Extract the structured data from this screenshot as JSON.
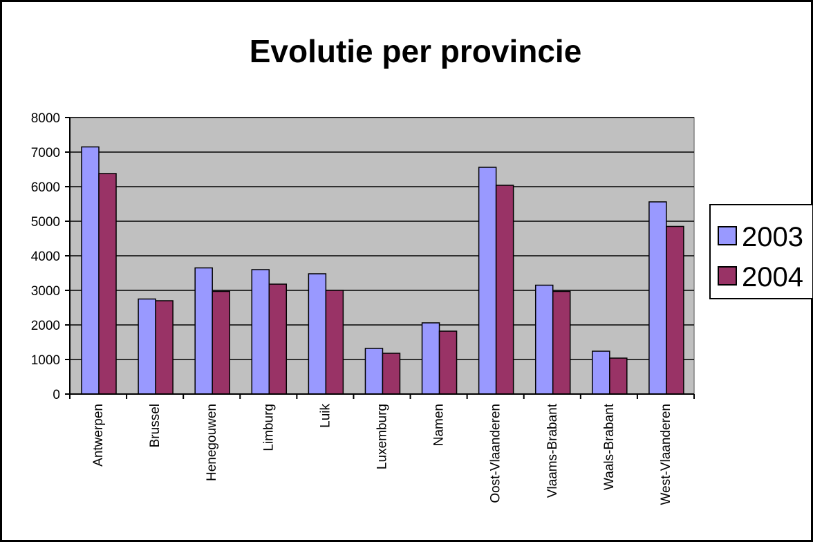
{
  "chart_data": {
    "type": "bar",
    "title": "Evolutie per provincie",
    "xlabel": "",
    "ylabel": "",
    "ylim": [
      0,
      8000
    ],
    "yticks": [
      0,
      1000,
      2000,
      3000,
      4000,
      5000,
      6000,
      7000,
      8000
    ],
    "grid": true,
    "legend_position": "right",
    "plot_background": "#c0c0c0",
    "categories": [
      "Antwerpen",
      "Brussel",
      "Henegouwen",
      "Limburg",
      "Luik",
      "Luxemburg",
      "Namen",
      "Oost-Vlaanderen",
      "Vlaams-Brabant",
      "Waals-Brabant",
      "West-Vlaanderen"
    ],
    "series": [
      {
        "name": "2003",
        "color": "#9999ff",
        "values": [
          7150,
          2750,
          3650,
          3600,
          3480,
          1320,
          2060,
          6560,
          3150,
          1240,
          5560
        ]
      },
      {
        "name": "2004",
        "color": "#993366",
        "values": [
          6380,
          2700,
          2970,
          3180,
          3000,
          1180,
          1820,
          6040,
          2970,
          1040,
          4850
        ]
      }
    ]
  }
}
